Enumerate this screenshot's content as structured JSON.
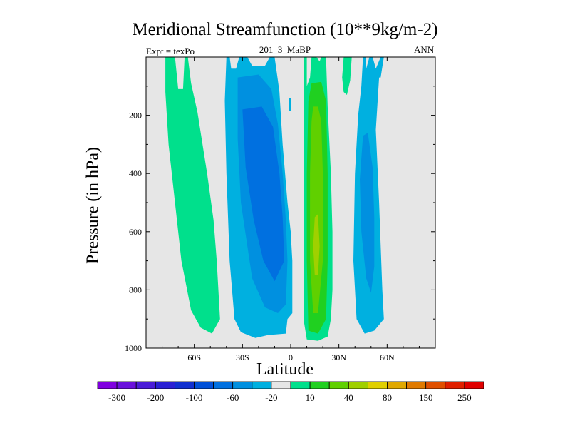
{
  "chart_data": {
    "type": "contour",
    "title": "Meridional Streamfunction (10**9kg/m-2)",
    "subtitle": "201_3_MaBP",
    "left_annotation": "Expt = texPo",
    "right_annotation": "ANN",
    "xlabel": "Latitude",
    "ylabel": "Pressure (in hPa)",
    "xlim": [
      -90,
      90
    ],
    "ylim": [
      1000,
      0
    ],
    "x_ticks": [
      {
        "value": -60,
        "label": "60S"
      },
      {
        "value": -30,
        "label": "30S"
      },
      {
        "value": 0,
        "label": "0"
      },
      {
        "value": 30,
        "label": "30N"
      },
      {
        "value": 60,
        "label": "60N"
      }
    ],
    "y_ticks": [
      {
        "value": 200,
        "label": "200"
      },
      {
        "value": 400,
        "label": "400"
      },
      {
        "value": 600,
        "label": "600"
      },
      {
        "value": 800,
        "label": "800"
      },
      {
        "value": 1000,
        "label": "1000"
      }
    ],
    "background_color": "#e6e6e6",
    "levels": [
      {
        "label": "-300",
        "color": "#8000e0"
      },
      {
        "label": "",
        "color": "#6a10dc"
      },
      {
        "label": "-200",
        "color": "#4a1cd8"
      },
      {
        "label": "",
        "color": "#2a20d4"
      },
      {
        "label": "-100",
        "color": "#1030d0"
      },
      {
        "label": "",
        "color": "#0050d8"
      },
      {
        "label": "-60",
        "color": "#0070e0"
      },
      {
        "label": "",
        "color": "#0090e0"
      },
      {
        "label": "-20",
        "color": "#00b0e0"
      },
      {
        "label": "",
        "color": "#e6e6e6"
      },
      {
        "label": "10",
        "color": "#00e08c"
      },
      {
        "label": "",
        "color": "#20d020"
      },
      {
        "label": "40",
        "color": "#60d000"
      },
      {
        "label": "",
        "color": "#a0d000"
      },
      {
        "label": "80",
        "color": "#e0d000"
      },
      {
        "label": "",
        "color": "#e0a800"
      },
      {
        "label": "150",
        "color": "#e07a00"
      },
      {
        "label": "",
        "color": "#e05000"
      },
      {
        "label": "250",
        "color": "#e02000"
      },
      {
        "label": "",
        "color": "#e00000"
      }
    ],
    "regions": [
      {
        "name": "sh-polar-cell",
        "color": "#00e08c",
        "points": [
          [
            -78,
            0
          ],
          [
            -72,
            0
          ],
          [
            -70,
            110
          ],
          [
            -67,
            110
          ],
          [
            -66,
            0
          ],
          [
            -64,
            0
          ],
          [
            -62,
            90
          ],
          [
            -58,
            190
          ],
          [
            -52,
            400
          ],
          [
            -48,
            560
          ],
          [
            -46,
            700
          ],
          [
            -44,
            900
          ],
          [
            -49,
            950
          ],
          [
            -56,
            930
          ],
          [
            -62,
            870
          ],
          [
            -68,
            700
          ],
          [
            -72,
            500
          ],
          [
            -76,
            300
          ],
          [
            -78,
            120
          ]
        ]
      },
      {
        "name": "sh-ferrel-cell-outer",
        "color": "#00b0e0",
        "points": [
          [
            -40,
            0
          ],
          [
            -38,
            0
          ],
          [
            -37,
            40
          ],
          [
            -34,
            40
          ],
          [
            -32,
            0
          ],
          [
            -27,
            0
          ],
          [
            -24,
            30
          ],
          [
            -16,
            30
          ],
          [
            -13,
            0
          ],
          [
            -10,
            0
          ],
          [
            -8,
            80
          ],
          [
            -7,
            120
          ],
          [
            -5,
            300
          ],
          [
            -2,
            500
          ],
          [
            0,
            600
          ],
          [
            1,
            700
          ],
          [
            1,
            880
          ],
          [
            -2,
            900
          ],
          [
            -3,
            950
          ],
          [
            -14,
            955
          ],
          [
            -22,
            965
          ],
          [
            -31,
            945
          ],
          [
            -35,
            900
          ],
          [
            -38,
            700
          ],
          [
            -40,
            400
          ],
          [
            -41,
            150
          ]
        ]
      },
      {
        "name": "sh-ferrel-cell-mid",
        "color": "#0090e0",
        "points": [
          [
            -33,
            70
          ],
          [
            -20,
            60
          ],
          [
            -12,
            110
          ],
          [
            -8,
            230
          ],
          [
            -5,
            400
          ],
          [
            -3,
            560
          ],
          [
            -2,
            700
          ],
          [
            -3,
            850
          ],
          [
            -8,
            880
          ],
          [
            -16,
            860
          ],
          [
            -24,
            760
          ],
          [
            -31,
            500
          ],
          [
            -33,
            280
          ]
        ]
      },
      {
        "name": "sh-ferrel-cell-core",
        "color": "#0070e0",
        "points": [
          [
            -30,
            180
          ],
          [
            -18,
            170
          ],
          [
            -11,
            240
          ],
          [
            -7,
            400
          ],
          [
            -5,
            550
          ],
          [
            -4,
            700
          ],
          [
            -10,
            770
          ],
          [
            -17,
            700
          ],
          [
            -23,
            560
          ],
          [
            -28,
            380
          ]
        ]
      },
      {
        "name": "equatorial-tongue",
        "color": "#00b0e0",
        "points": [
          [
            -1,
            140
          ],
          [
            0,
            140
          ],
          [
            0,
            185
          ],
          [
            -1,
            185
          ]
        ]
      },
      {
        "name": "nh-hadley-outer",
        "color": "#00e08c",
        "points": [
          [
            8,
            0
          ],
          [
            10,
            0
          ],
          [
            10,
            100
          ],
          [
            12,
            70
          ],
          [
            13,
            0
          ],
          [
            16,
            0
          ],
          [
            18,
            15
          ],
          [
            19,
            0
          ],
          [
            22,
            0
          ],
          [
            23,
            170
          ],
          [
            25,
            400
          ],
          [
            26,
            600
          ],
          [
            26,
            800
          ],
          [
            25,
            900
          ],
          [
            23,
            960
          ],
          [
            17,
            975
          ],
          [
            10,
            970
          ],
          [
            8,
            900
          ],
          [
            8,
            500
          ],
          [
            8,
            150
          ]
        ]
      },
      {
        "name": "nh-polar-finger",
        "color": "#00e08c",
        "points": [
          [
            33,
            0
          ],
          [
            38,
            0
          ],
          [
            37,
            80
          ],
          [
            35,
            130
          ],
          [
            33,
            120
          ],
          [
            32,
            70
          ]
        ]
      },
      {
        "name": "nh-hadley-mid",
        "color": "#20d020",
        "points": [
          [
            11,
            150
          ],
          [
            13,
            90
          ],
          [
            19,
            85
          ],
          [
            22,
            150
          ],
          [
            23,
            400
          ],
          [
            23,
            700
          ],
          [
            22,
            900
          ],
          [
            17,
            950
          ],
          [
            11,
            940
          ],
          [
            10,
            700
          ],
          [
            10,
            400
          ]
        ]
      },
      {
        "name": "nh-hadley-core",
        "color": "#60d000",
        "points": [
          [
            13,
            220
          ],
          [
            14,
            170
          ],
          [
            17,
            170
          ],
          [
            19,
            220
          ],
          [
            20,
            400
          ],
          [
            20,
            700
          ],
          [
            17,
            880
          ],
          [
            14,
            880
          ],
          [
            12,
            700
          ],
          [
            12,
            400
          ]
        ]
      },
      {
        "name": "nh-hadley-peak",
        "color": "#a0d000",
        "points": [
          [
            15,
            550
          ],
          [
            17,
            540
          ],
          [
            18,
            650
          ],
          [
            17,
            750
          ],
          [
            15,
            750
          ],
          [
            14,
            650
          ]
        ]
      },
      {
        "name": "nh-ferrel-cell",
        "color": "#00b0e0",
        "points": [
          [
            45,
            0
          ],
          [
            47,
            0
          ],
          [
            47,
            40
          ],
          [
            49,
            0
          ],
          [
            51,
            0
          ],
          [
            53,
            40
          ],
          [
            56,
            0
          ],
          [
            58,
            0
          ],
          [
            56,
            70
          ],
          [
            55,
            70
          ],
          [
            53,
            250
          ],
          [
            55,
            500
          ],
          [
            57,
            800
          ],
          [
            58,
            900
          ],
          [
            52,
            940
          ],
          [
            46,
            950
          ],
          [
            41,
            900
          ],
          [
            39,
            700
          ],
          [
            40,
            400
          ],
          [
            42,
            200
          ],
          [
            44,
            100
          ]
        ]
      },
      {
        "name": "nh-ferrel-core",
        "color": "#0090e0",
        "points": [
          [
            45,
            270
          ],
          [
            48,
            260
          ],
          [
            51,
            380
          ],
          [
            52,
            550
          ],
          [
            52,
            720
          ],
          [
            50,
            810
          ],
          [
            47,
            760
          ],
          [
            44,
            600
          ],
          [
            43,
            420
          ]
        ]
      }
    ]
  }
}
